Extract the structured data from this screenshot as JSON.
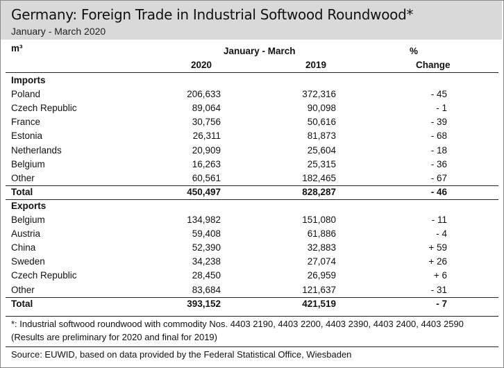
{
  "title": "Germany: Foreign Trade in Industrial Softwood Roundwood*",
  "subtitle": "January - March 2020",
  "table": {
    "unit_label": "m³",
    "period_header": "January - March",
    "col_2020": "2020",
    "col_2019": "2019",
    "pct_header": "%",
    "change_header": "Change",
    "sections": [
      {
        "name": "Imports",
        "rows": [
          {
            "label": "Poland",
            "v2020": "206,633",
            "v2019": "372,316",
            "change": "- 45"
          },
          {
            "label": "Czech Republic",
            "v2020": "89,064",
            "v2019": "90,098",
            "change": "- 1"
          },
          {
            "label": "France",
            "v2020": "30,756",
            "v2019": "50,616",
            "change": "- 39"
          },
          {
            "label": "Estonia",
            "v2020": "26,311",
            "v2019": "81,873",
            "change": "- 68"
          },
          {
            "label": "Netherlands",
            "v2020": "20,909",
            "v2019": "25,604",
            "change": "- 18"
          },
          {
            "label": "Belgium",
            "v2020": "16,263",
            "v2019": "25,315",
            "change": "- 36"
          },
          {
            "label": "Other",
            "v2020": "60,561",
            "v2019": "182,465",
            "change": "- 67"
          }
        ],
        "total": {
          "label": "Total",
          "v2020": "450,497",
          "v2019": "828,287",
          "change": "- 46"
        }
      },
      {
        "name": "Exports",
        "rows": [
          {
            "label": "Belgium",
            "v2020": "134,982",
            "v2019": "151,080",
            "change": "- 11"
          },
          {
            "label": "Austria",
            "v2020": "59,408",
            "v2019": "61,886",
            "change": "- 4"
          },
          {
            "label": "China",
            "v2020": "52,390",
            "v2019": "32,883",
            "change": "+ 59"
          },
          {
            "label": "Sweden",
            "v2020": "34,238",
            "v2019": "27,074",
            "change": "+ 26"
          },
          {
            "label": "Czech Republic",
            "v2020": "28,450",
            "v2019": "26,959",
            "change": "+ 6"
          },
          {
            "label": "Other",
            "v2020": "83,684",
            "v2019": "121,637",
            "change": "- 31"
          }
        ],
        "total": {
          "label": "Total",
          "v2020": "393,152",
          "v2019": "421,519",
          "change": "- 7"
        }
      }
    ]
  },
  "footnote_line1": "*: Industrial softwood roundwood with commodity Nos. 4403 2190, 4403 2200, 4403 2390, 4403 2400, 4403 2590",
  "footnote_line2": "(Results are preliminary for 2020 and final for 2019)",
  "source": "Source: EUWID, based on data provided by the Federal Statistical Office, Wiesbaden"
}
